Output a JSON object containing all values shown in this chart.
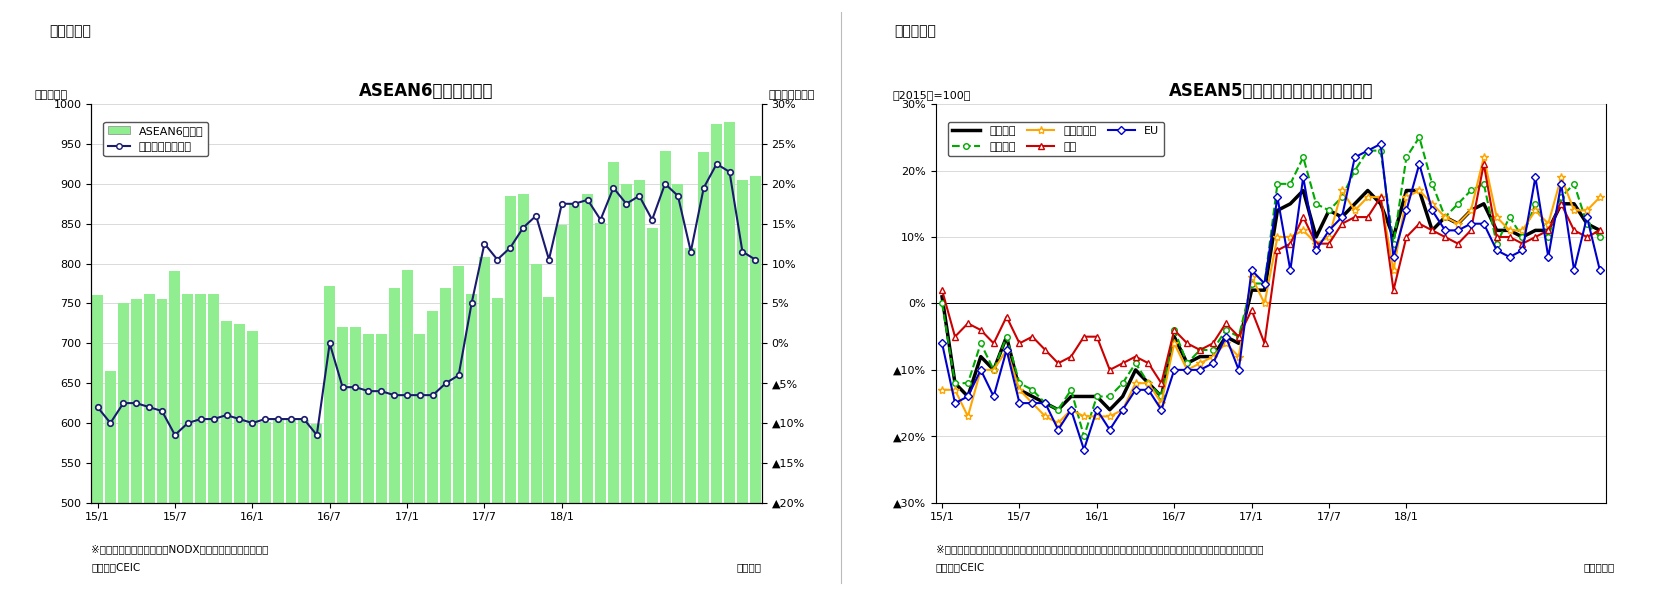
{
  "chart1": {
    "title": "ASEAN6カ国の輸出額",
    "subtitle_left": "（億ドル）",
    "subtitle_right": "（前年同月比）",
    "header": "（図表１）",
    "ylim_left": [
      500,
      1000
    ],
    "ylim_right": [
      -0.2,
      0.3
    ],
    "yticks_left": [
      500,
      550,
      600,
      650,
      700,
      750,
      800,
      850,
      900,
      950,
      1000
    ],
    "ytick_labels_right": [
      "30%",
      "25%",
      "20%",
      "15%",
      "10%",
      "5%",
      "0%",
      "▲5%",
      "▲10%",
      "▲15%",
      "▲20%"
    ],
    "yticks_right": [
      0.3,
      0.25,
      0.2,
      0.15,
      0.1,
      0.05,
      0.0,
      -0.05,
      -0.1,
      -0.15,
      -0.2
    ],
    "bar_color": "#90EE90",
    "line_color": "#1a1a6e",
    "footnote1": "※シンガポールの輸出額はNODX（石油と再輸出除く）。",
    "footnote2": "（資料）CEIC",
    "footnote3": "（年月）",
    "legend_bar": "ASEAN6ヵ国計",
    "legend_line": "増加率（右目盛）",
    "x_tick_positions": [
      0,
      6,
      12,
      18,
      24,
      30,
      36
    ],
    "x_tick_labels": [
      "15/1",
      "15/7",
      "16/1",
      "16/7",
      "17/1",
      "17/7",
      "18/1"
    ],
    "bar_values": [
      760,
      665,
      750,
      755,
      762,
      755,
      791,
      762,
      762,
      762,
      728,
      724,
      716,
      601,
      604,
      604,
      604,
      599,
      772,
      721,
      720,
      712,
      712,
      769,
      792,
      712,
      741,
      769,
      797,
      762,
      808,
      757,
      885,
      887,
      799,
      758,
      848,
      875,
      887,
      851,
      928,
      900,
      905,
      845,
      941,
      900,
      820,
      940,
      975,
      978,
      905,
      910
    ],
    "line_values": [
      -0.08,
      -0.1,
      -0.075,
      -0.075,
      -0.08,
      -0.085,
      -0.115,
      -0.1,
      -0.095,
      -0.095,
      -0.09,
      -0.095,
      -0.1,
      -0.095,
      -0.095,
      -0.095,
      -0.095,
      -0.115,
      0.0,
      -0.055,
      -0.055,
      -0.06,
      -0.06,
      -0.065,
      -0.065,
      -0.065,
      -0.065,
      -0.05,
      -0.04,
      0.05,
      0.125,
      0.105,
      0.12,
      0.145,
      0.16,
      0.105,
      0.175,
      0.175,
      0.18,
      0.155,
      0.195,
      0.175,
      0.185,
      0.155,
      0.2,
      0.185,
      0.115,
      0.195,
      0.225,
      0.215,
      0.115,
      0.105
    ]
  },
  "chart2": {
    "title": "ASEAN5ヵ国　仕向け地別の輸出動向",
    "header": "（図表２）",
    "subtitle_left": "（2015年=100）",
    "ylim": [
      -0.3,
      0.3
    ],
    "yticks": [
      0.3,
      0.2,
      0.1,
      0.0,
      -0.1,
      -0.2,
      -0.3
    ],
    "ytick_labels": [
      "30%",
      "20%",
      "10%",
      "0%",
      "▲10%",
      "▲20%",
      "▲30%"
    ],
    "x_tick_positions": [
      0,
      6,
      12,
      18,
      24,
      30,
      36
    ],
    "x_tick_labels": [
      "15/1",
      "15/7",
      "16/1",
      "16/7",
      "17/1",
      "17/7",
      "18/1"
    ],
    "footnote1": "※タイ、マレーシア、シンガポール（地場輸出）、インドネシア（非石油ガス輸出）、フィリピンの輸出より算出。",
    "footnote2": "（資料）CEIC",
    "footnote3": "（年／月）",
    "series": {
      "輸出全体": {
        "color": "#000000",
        "linewidth": 2.5,
        "marker": null,
        "linestyle": "-",
        "markersize": 0,
        "values": [
          0.01,
          -0.12,
          -0.14,
          -0.08,
          -0.1,
          -0.05,
          -0.13,
          -0.14,
          -0.15,
          -0.16,
          -0.14,
          -0.14,
          -0.14,
          -0.16,
          -0.14,
          -0.1,
          -0.12,
          -0.14,
          -0.05,
          -0.09,
          -0.08,
          -0.08,
          -0.05,
          -0.06,
          0.02,
          0.02,
          0.14,
          0.15,
          0.17,
          0.1,
          0.14,
          0.13,
          0.15,
          0.17,
          0.15,
          0.1,
          0.17,
          0.17,
          0.11,
          0.13,
          0.12,
          0.14,
          0.15,
          0.11,
          0.11,
          0.1,
          0.11,
          0.11,
          0.15,
          0.15,
          0.12,
          0.11
        ]
      },
      "東アジア": {
        "color": "#00aa00",
        "linewidth": 1.5,
        "marker": "o",
        "linestyle": "--",
        "markersize": 4,
        "values": [
          0.0,
          -0.12,
          -0.12,
          -0.06,
          -0.1,
          -0.05,
          -0.12,
          -0.13,
          -0.15,
          -0.16,
          -0.13,
          -0.2,
          -0.14,
          -0.14,
          -0.12,
          -0.09,
          -0.12,
          -0.14,
          -0.04,
          -0.09,
          -0.07,
          -0.07,
          -0.04,
          -0.05,
          0.03,
          0.03,
          0.18,
          0.18,
          0.22,
          0.15,
          0.14,
          0.16,
          0.2,
          0.23,
          0.23,
          0.09,
          0.22,
          0.25,
          0.18,
          0.13,
          0.15,
          0.17,
          0.18,
          0.09,
          0.13,
          0.1,
          0.15,
          0.1,
          0.16,
          0.18,
          0.12,
          0.1
        ]
      },
      "東南アジア": {
        "color": "#FFA500",
        "linewidth": 1.5,
        "marker": "*",
        "linestyle": "-",
        "markersize": 6,
        "values": [
          -0.13,
          -0.13,
          -0.17,
          -0.1,
          -0.1,
          -0.07,
          -0.13,
          -0.15,
          -0.17,
          -0.18,
          -0.16,
          -0.17,
          -0.17,
          -0.17,
          -0.16,
          -0.12,
          -0.12,
          -0.15,
          -0.06,
          -0.1,
          -0.09,
          -0.08,
          -0.06,
          -0.08,
          0.04,
          0.0,
          0.1,
          0.1,
          0.11,
          0.09,
          0.1,
          0.17,
          0.14,
          0.16,
          0.16,
          0.05,
          0.16,
          0.17,
          0.15,
          0.13,
          0.12,
          0.14,
          0.22,
          0.13,
          0.11,
          0.11,
          0.14,
          0.12,
          0.19,
          0.14,
          0.14,
          0.16
        ]
      },
      "北米": {
        "color": "#cc0000",
        "linewidth": 1.5,
        "marker": "^",
        "linestyle": "-",
        "markersize": 5,
        "values": [
          0.02,
          -0.05,
          -0.03,
          -0.04,
          -0.06,
          -0.02,
          -0.06,
          -0.05,
          -0.07,
          -0.09,
          -0.08,
          -0.05,
          -0.05,
          -0.1,
          -0.09,
          -0.08,
          -0.09,
          -0.12,
          -0.04,
          -0.06,
          -0.07,
          -0.06,
          -0.03,
          -0.05,
          -0.01,
          -0.06,
          0.08,
          0.09,
          0.13,
          0.09,
          0.09,
          0.12,
          0.13,
          0.13,
          0.16,
          0.02,
          0.1,
          0.12,
          0.11,
          0.1,
          0.09,
          0.11,
          0.21,
          0.1,
          0.1,
          0.09,
          0.1,
          0.11,
          0.15,
          0.11,
          0.1,
          0.11
        ]
      },
      "EU": {
        "color": "#0000cc",
        "linewidth": 1.5,
        "marker": "D",
        "linestyle": "-",
        "markersize": 4,
        "values": [
          -0.06,
          -0.15,
          -0.14,
          -0.1,
          -0.14,
          -0.07,
          -0.15,
          -0.15,
          -0.15,
          -0.19,
          -0.16,
          -0.22,
          -0.16,
          -0.19,
          -0.16,
          -0.13,
          -0.13,
          -0.16,
          -0.1,
          -0.1,
          -0.1,
          -0.09,
          -0.05,
          -0.1,
          0.05,
          0.03,
          0.16,
          0.05,
          0.19,
          0.08,
          0.11,
          0.13,
          0.22,
          0.23,
          0.24,
          0.07,
          0.14,
          0.21,
          0.14,
          0.11,
          0.11,
          0.12,
          0.12,
          0.08,
          0.07,
          0.08,
          0.19,
          0.07,
          0.18,
          0.05,
          0.13,
          0.05
        ]
      }
    }
  }
}
